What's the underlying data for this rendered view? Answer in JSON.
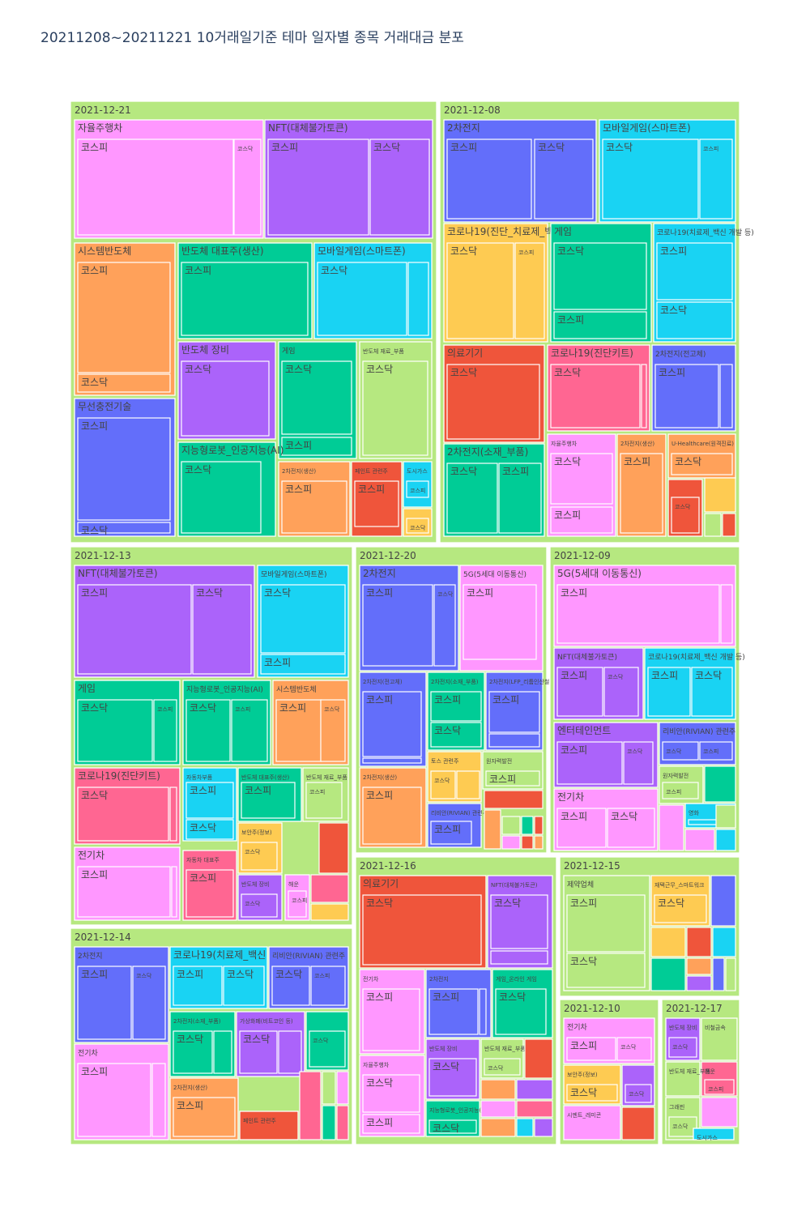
{
  "title": "20211208~20211221 10거래일기준 테마 일자별 종목 거래대금 분포",
  "colors": {
    "date_bg": "#b6e880",
    "purple": "#ab63fa",
    "indigo": "#636efa",
    "pink": "#ff97ff",
    "orange": "#ffa15a",
    "green": "#00cc96",
    "cyan": "#19d3f3",
    "lime": "#b6e880",
    "red": "#ef553b",
    "rose": "#ff6692",
    "yellow": "#fecb52"
  },
  "chart_data": {
    "type": "treemap",
    "hierarchy": [
      "date",
      "theme",
      "market"
    ],
    "dates": [
      {
        "date": "2021-12-21",
        "themes": [
          {
            "name": "자율주행차",
            "color": "pink",
            "markets": [
              "코스피",
              "코스닥"
            ]
          },
          {
            "name": "NFT(대체불가토큰)",
            "color": "purple",
            "markets": [
              "코스피",
              "코스닥"
            ]
          },
          {
            "name": "시스템반도체",
            "color": "orange",
            "markets": [
              "코스피",
              "코스닥"
            ]
          },
          {
            "name": "반도체 대표주(생산)",
            "color": "green",
            "markets": [
              "코스피"
            ]
          },
          {
            "name": "모바일게임(스마트폰)",
            "color": "cyan",
            "markets": [
              "코스닥",
              ""
            ]
          },
          {
            "name": "반도체 장비",
            "color": "purple",
            "markets": [
              "코스닥"
            ]
          },
          {
            "name": "게임",
            "color": "green",
            "markets": [
              "코스닥",
              "코스피"
            ]
          },
          {
            "name": "반도체 재료_부품",
            "color": "lime",
            "markets": [
              "코스닥"
            ]
          },
          {
            "name": "무선충전기술",
            "color": "indigo",
            "markets": [
              "코스피",
              "코스닥"
            ]
          },
          {
            "name": "지능형로봇_인공지능(AI)",
            "color": "green",
            "markets": [
              "코스닥"
            ]
          },
          {
            "name": "2차전지(생산)",
            "color": "orange",
            "markets": [
              "코스피"
            ]
          },
          {
            "name": "페인트 관련주",
            "color": "red",
            "markets": [
              "코스피"
            ]
          },
          {
            "name": "도시가스",
            "color": "cyan",
            "markets": [
              "코스피"
            ]
          },
          {
            "name": "",
            "color": "yellow",
            "markets": [
              "코스닥"
            ]
          }
        ]
      },
      {
        "date": "2021-12-08",
        "themes": [
          {
            "name": "2차전지",
            "color": "indigo",
            "markets": [
              "코스피",
              "코스닥"
            ]
          },
          {
            "name": "모바일게임(스마트폰)",
            "color": "cyan",
            "markets": [
              "코스닥",
              "코스피"
            ]
          },
          {
            "name": "코로나19(진단_치료제_백신 개발 등)",
            "color": "yellow",
            "markets": [
              "코스닥",
              "코스피"
            ]
          },
          {
            "name": "게임",
            "color": "green",
            "markets": [
              "코스닥",
              "코스피"
            ]
          },
          {
            "name": "코로나19(치료제_백신 개발 등)",
            "color": "cyan",
            "markets": [
              "코스피",
              "코스닥"
            ]
          },
          {
            "name": "의료기기",
            "color": "red",
            "markets": [
              "코스닥"
            ]
          },
          {
            "name": "코로나19(진단키트)",
            "color": "rose",
            "markets": [
              "코스닥"
            ]
          },
          {
            "name": "2차전지(전고체)",
            "color": "indigo",
            "markets": [
              "코스피"
            ]
          },
          {
            "name": "2차전지(소재_부품)",
            "color": "green",
            "markets": [
              "코스닥",
              "코스피"
            ]
          },
          {
            "name": "자율주행차",
            "color": "pink",
            "markets": [
              "코스닥",
              "코스피"
            ]
          },
          {
            "name": "2차전지(생산)",
            "color": "orange",
            "markets": [
              "코스피"
            ]
          },
          {
            "name": "U-Healthcare(원격진료)",
            "color": "orange",
            "markets": [
              "코스닥"
            ]
          },
          {
            "name": "",
            "color": "red",
            "markets": [
              "코스닥"
            ]
          }
        ]
      },
      {
        "date": "2021-12-13",
        "themes": [
          {
            "name": "NFT(대체불가토큰)",
            "color": "purple",
            "markets": [
              "코스피",
              "코스닥"
            ]
          },
          {
            "name": "모바일게임(스마트폰)",
            "color": "cyan",
            "markets": [
              "코스닥",
              "코스피"
            ]
          },
          {
            "name": "게임",
            "color": "green",
            "markets": [
              "코스닥",
              "코스피"
            ]
          },
          {
            "name": "지능형로봇_인공지능(AI)",
            "color": "green",
            "markets": [
              "코스닥",
              "코스피"
            ]
          },
          {
            "name": "시스템반도체",
            "color": "orange",
            "markets": [
              "코스피",
              "코스닥"
            ]
          },
          {
            "name": "코로나19(진단키트)",
            "color": "rose",
            "markets": [
              "코스닥"
            ]
          },
          {
            "name": "자동차부품",
            "color": "cyan",
            "markets": [
              "코스피",
              "코스닥"
            ]
          },
          {
            "name": "반도체 대표주(생산)",
            "color": "green",
            "markets": [
              "코스피"
            ]
          },
          {
            "name": "반도체 재료_부품",
            "color": "lime",
            "markets": [
              "코스피"
            ]
          },
          {
            "name": "전기차",
            "color": "pink",
            "markets": [
              "코스피"
            ]
          },
          {
            "name": "자동차 대표주",
            "color": "rose",
            "markets": [
              "코스피"
            ]
          },
          {
            "name": "보안주(정보)",
            "color": "yellow",
            "markets": [
              "코스닥"
            ]
          },
          {
            "name": "반도체 장비",
            "color": "purple",
            "markets": [
              "코스닥"
            ]
          },
          {
            "name": "해운",
            "color": "pink",
            "markets": [
              "코스피"
            ]
          }
        ]
      },
      {
        "date": "2021-12-20",
        "themes": [
          {
            "name": "2차전지",
            "color": "indigo",
            "markets": [
              "코스피",
              "코스닥"
            ]
          },
          {
            "name": "5G(5세대 이동통신)",
            "color": "pink",
            "markets": [
              "코스피"
            ]
          },
          {
            "name": "2차전지(전고체)",
            "color": "indigo",
            "markets": [
              "코스피"
            ]
          },
          {
            "name": "2차전지(소재_부품)",
            "color": "green",
            "markets": [
              "코스피",
              "코스닥"
            ]
          },
          {
            "name": "2차전지(LFP_리튬인산철)",
            "color": "indigo",
            "markets": [
              "코스피"
            ]
          },
          {
            "name": "토스 관련주",
            "color": "yellow",
            "markets": [
              "코스닥"
            ]
          },
          {
            "name": "원자력발전",
            "color": "lime",
            "markets": [
              "코스피"
            ]
          },
          {
            "name": "2차전지(생산)",
            "color": "orange",
            "markets": [
              "코스피"
            ]
          },
          {
            "name": "리비안(RIVIAN) 관련주",
            "color": "indigo",
            "markets": [
              "코스피"
            ]
          }
        ]
      },
      {
        "date": "2021-12-09",
        "themes": [
          {
            "name": "5G(5세대 이동통신)",
            "color": "pink",
            "markets": [
              "코스피"
            ]
          },
          {
            "name": "NFT(대체불가토큰)",
            "color": "purple",
            "markets": [
              "코스피",
              "코스닥"
            ]
          },
          {
            "name": "코로나19(치료제_백신 개발 등)",
            "color": "cyan",
            "markets": [
              "코스피",
              "코스닥"
            ]
          },
          {
            "name": "엔터테인먼트",
            "color": "purple",
            "markets": [
              "코스피",
              "코스닥"
            ]
          },
          {
            "name": "리비안(RIVIAN) 관련주",
            "color": "indigo",
            "markets": [
              "코스닥",
              "코스피"
            ]
          },
          {
            "name": "원자력발전",
            "color": "lime",
            "markets": [
              "코스피"
            ]
          },
          {
            "name": "전기차",
            "color": "pink",
            "markets": [
              "코스피",
              "코스닥"
            ]
          },
          {
            "name": "영화",
            "color": "cyan",
            "markets": [
              ""
            ]
          }
        ]
      },
      {
        "date": "2021-12-16",
        "themes": [
          {
            "name": "의료기기",
            "color": "red",
            "markets": [
              "코스닥"
            ]
          },
          {
            "name": "NFT(대체불가토큰)",
            "color": "purple",
            "markets": [
              "코스닥"
            ]
          },
          {
            "name": "전기차",
            "color": "pink",
            "markets": [
              "코스피"
            ]
          },
          {
            "name": "2차전지",
            "color": "indigo",
            "markets": [
              "코스피"
            ]
          },
          {
            "name": "게임_온라인 게임",
            "color": "green",
            "markets": [
              "코스닥"
            ]
          },
          {
            "name": "자율주행차",
            "color": "pink",
            "markets": [
              "코스닥",
              "코스피"
            ]
          },
          {
            "name": "반도체 장비",
            "color": "purple",
            "markets": [
              "코스닥"
            ]
          },
          {
            "name": "반도체 재료_부품",
            "color": "lime",
            "markets": [
              "코스닥"
            ]
          },
          {
            "name": "지능형로봇_인공지능(AI)",
            "color": "green",
            "markets": [
              "코스닥"
            ]
          }
        ]
      },
      {
        "date": "2021-12-15",
        "themes": [
          {
            "name": "제약업체",
            "color": "lime",
            "markets": [
              "코스피",
              "코스닥"
            ]
          },
          {
            "name": "재택근무_스마트워크",
            "color": "yellow",
            "markets": [
              "코스닥"
            ]
          }
        ]
      },
      {
        "date": "2021-12-14",
        "themes": [
          {
            "name": "2차전지",
            "color": "indigo",
            "markets": [
              "코스피",
              "코스닥"
            ]
          },
          {
            "name": "코로나19(치료제_백신 개발 등)",
            "color": "cyan",
            "markets": [
              "코스피",
              "코스닥"
            ]
          },
          {
            "name": "리비안(RIVIAN) 관련주",
            "color": "indigo",
            "markets": [
              "코스닥",
              "코스피"
            ]
          },
          {
            "name": "전기차",
            "color": "pink",
            "markets": [
              "코스피"
            ]
          },
          {
            "name": "2차전지(소재_부품)",
            "color": "green",
            "markets": [
              "코스닥"
            ]
          },
          {
            "name": "가상화폐(비트코인 등)",
            "color": "purple",
            "markets": [
              "코스닥"
            ]
          },
          {
            "name": "2차전지(생산)",
            "color": "orange",
            "markets": [
              "코스피"
            ]
          },
          {
            "name": "페인트 관련주",
            "color": "red",
            "markets": []
          },
          {
            "name": "",
            "color": "green",
            "markets": [
              "코스닥"
            ]
          }
        ]
      },
      {
        "date": "2021-12-10",
        "themes": [
          {
            "name": "전기차",
            "color": "pink",
            "markets": [
              "코스피",
              "코스닥"
            ]
          },
          {
            "name": "보안주(정보)",
            "color": "yellow",
            "markets": [
              "코스닥"
            ]
          },
          {
            "name": "시멘트_레미콘",
            "color": "pink",
            "markets": []
          },
          {
            "name": "",
            "color": "purple",
            "markets": [
              "코스닥"
            ]
          }
        ]
      },
      {
        "date": "2021-12-17",
        "themes": [
          {
            "name": "반도체 장비",
            "color": "purple",
            "markets": [
              "코스닥"
            ]
          },
          {
            "name": "비철금속",
            "color": "lime",
            "markets": []
          },
          {
            "name": "해운",
            "color": "rose",
            "markets": [
              "코스피"
            ]
          },
          {
            "name": "그래핀",
            "color": "lime",
            "markets": [
              "코스닥"
            ]
          },
          {
            "name": "반도체 재료_부품",
            "color": "lime",
            "markets": []
          },
          {
            "name": "도시가스",
            "color": "cyan",
            "markets": []
          }
        ]
      }
    ]
  }
}
